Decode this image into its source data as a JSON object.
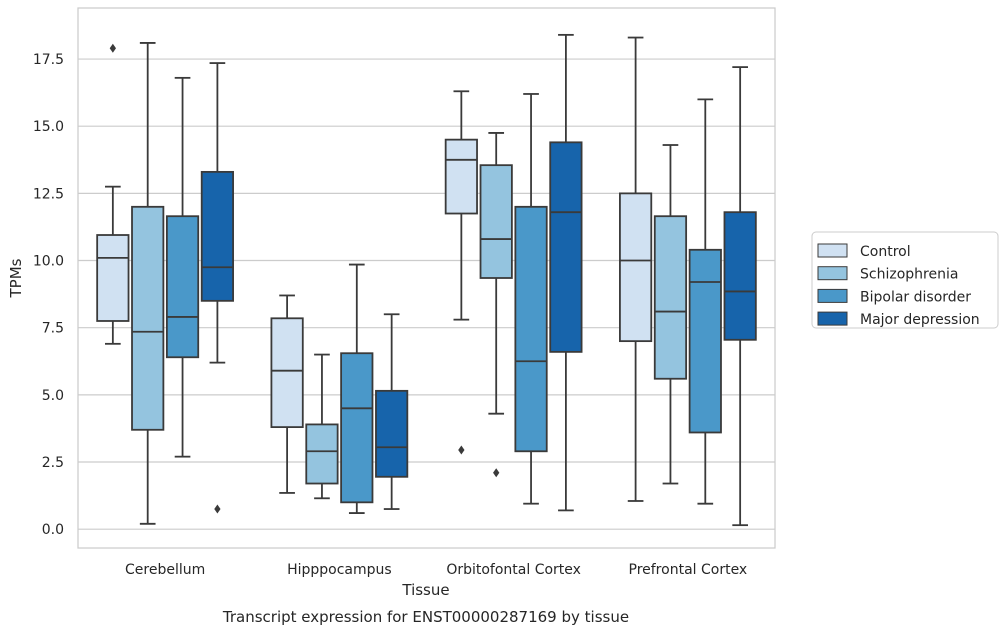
{
  "caption": "Transcript expression for ENST00000287169 by tissue",
  "chart_data": {
    "type": "box",
    "xlabel": "Tissue",
    "ylabel": "TPMs",
    "ylim": [
      -0.7,
      19.4
    ],
    "yticks": [
      0.0,
      2.5,
      5.0,
      7.5,
      10.0,
      12.5,
      15.0,
      17.5
    ],
    "ytick_labels": [
      "0.0",
      "2.5",
      "5.0",
      "7.5",
      "10.0",
      "12.5",
      "15.0",
      "17.5"
    ],
    "grid": "horizontal",
    "legend_position": "right",
    "categories": [
      "Cerebellum",
      "Hipppocampus",
      "Orbitofontal Cortex",
      "Prefrontal Cortex"
    ],
    "series": [
      {
        "name": "Control",
        "color": "#d0e1f2",
        "boxes": [
          {
            "whislo": 6.9,
            "q1": 7.75,
            "med": 10.1,
            "q3": 10.95,
            "whishi": 12.75,
            "fliers": [
              17.9
            ]
          },
          {
            "whislo": 1.35,
            "q1": 3.8,
            "med": 5.9,
            "q3": 7.85,
            "whishi": 8.7,
            "fliers": []
          },
          {
            "whislo": 7.8,
            "q1": 11.75,
            "med": 13.75,
            "q3": 14.5,
            "whishi": 16.3,
            "fliers": [
              2.95
            ]
          },
          {
            "whislo": 1.05,
            "q1": 7.0,
            "med": 10.0,
            "q3": 12.5,
            "whishi": 18.3,
            "fliers": []
          }
        ]
      },
      {
        "name": "Schizophrenia",
        "color": "#94c4df",
        "boxes": [
          {
            "whislo": 0.2,
            "q1": 3.7,
            "med": 7.35,
            "q3": 12.0,
            "whishi": 18.1,
            "fliers": []
          },
          {
            "whislo": 1.15,
            "q1": 1.7,
            "med": 2.9,
            "q3": 3.9,
            "whishi": 6.5,
            "fliers": []
          },
          {
            "whislo": 4.3,
            "q1": 9.35,
            "med": 10.8,
            "q3": 13.55,
            "whishi": 14.75,
            "fliers": [
              2.1
            ]
          },
          {
            "whislo": 1.7,
            "q1": 5.6,
            "med": 8.1,
            "q3": 11.65,
            "whishi": 14.3,
            "fliers": []
          }
        ]
      },
      {
        "name": "Bipolar disorder",
        "color": "#4a98c9",
        "boxes": [
          {
            "whislo": 2.7,
            "q1": 6.4,
            "med": 7.9,
            "q3": 11.65,
            "whishi": 16.8,
            "fliers": []
          },
          {
            "whislo": 0.6,
            "q1": 1.0,
            "med": 4.5,
            "q3": 6.55,
            "whishi": 9.85,
            "fliers": []
          },
          {
            "whislo": 0.95,
            "q1": 2.9,
            "med": 6.25,
            "q3": 12.0,
            "whishi": 16.2,
            "fliers": []
          },
          {
            "whislo": 0.95,
            "q1": 3.6,
            "med": 9.2,
            "q3": 10.4,
            "whishi": 16.0,
            "fliers": []
          }
        ]
      },
      {
        "name": "Major depression",
        "color": "#1764ab",
        "boxes": [
          {
            "whislo": 6.2,
            "q1": 8.5,
            "med": 9.75,
            "q3": 13.3,
            "whishi": 17.35,
            "fliers": [
              0.75
            ]
          },
          {
            "whislo": 0.75,
            "q1": 1.95,
            "med": 3.05,
            "q3": 5.15,
            "whishi": 8.0,
            "fliers": []
          },
          {
            "whislo": 0.7,
            "q1": 6.6,
            "med": 11.8,
            "q3": 14.4,
            "whishi": 18.4,
            "fliers": []
          },
          {
            "whislo": 0.15,
            "q1": 7.05,
            "med": 8.85,
            "q3": 11.8,
            "whishi": 17.2,
            "fliers": []
          }
        ]
      }
    ]
  }
}
